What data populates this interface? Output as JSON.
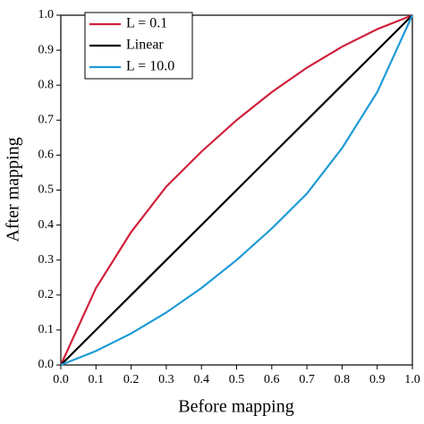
{
  "chart_data": {
    "type": "line",
    "xlabel": "Before mapping",
    "ylabel": "After mapping",
    "x": [
      0,
      0.1,
      0.2,
      0.3,
      0.4,
      0.5,
      0.6,
      0.7,
      0.8,
      0.9,
      1
    ],
    "series": [
      {
        "name": "L = 0.1",
        "color": "#d0203a",
        "values": [
          0,
          0.22,
          0.38,
          0.51,
          0.61,
          0.7,
          0.78,
          0.85,
          0.91,
          0.96,
          1
        ]
      },
      {
        "name": "Linear",
        "color": "#000000",
        "values": [
          0,
          0.1,
          0.2,
          0.3,
          0.4,
          0.5,
          0.6,
          0.7,
          0.8,
          0.9,
          1
        ]
      },
      {
        "name": "L = 10.0",
        "color": "#1f9ad6",
        "values": [
          0,
          0.04,
          0.09,
          0.15,
          0.22,
          0.3,
          0.39,
          0.49,
          0.62,
          0.78,
          1
        ]
      }
    ],
    "xlim": [
      0,
      1
    ],
    "ylim": [
      0,
      1
    ],
    "xticks": [
      {
        "value": 0,
        "label": "0.0"
      },
      0.1,
      0.2,
      0.3,
      0.4,
      0.5,
      0.6,
      0.7,
      0.8,
      0.9,
      {
        "value": 1,
        "label": "1.0"
      }
    ],
    "yticks": [
      {
        "value": 0,
        "label": "0.0"
      },
      0.1,
      0.2,
      0.3,
      0.4,
      0.5,
      0.6,
      0.7,
      0.8,
      0.9,
      {
        "value": 1,
        "label": "1.0"
      }
    ],
    "legend": "upper-left"
  }
}
